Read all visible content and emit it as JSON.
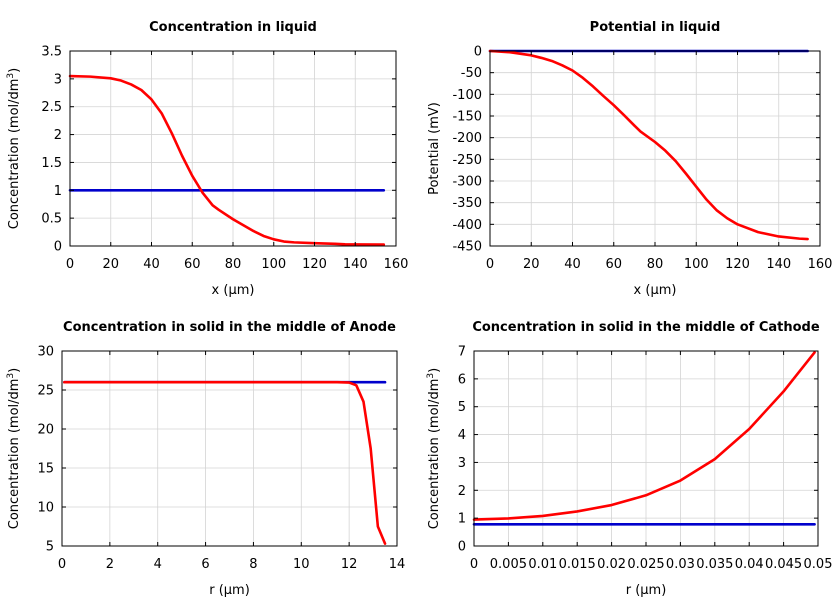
{
  "chart_data": [
    {
      "type": "line",
      "title": "Concentration in liquid",
      "xlabel": "x (µm)",
      "ylabel": "Concentration (mol/dm",
      "ylabel_sup": "3",
      "ylabel_end": ")",
      "xlim": [
        0,
        160
      ],
      "ylim": [
        0,
        3.5
      ],
      "xticks": [
        0,
        20,
        40,
        60,
        80,
        100,
        120,
        140,
        160
      ],
      "xtick_labels": [
        "0",
        "20",
        "40",
        "60",
        "80",
        "100",
        "120",
        "140",
        "160"
      ],
      "yticks": [
        0,
        0.5,
        1,
        1.5,
        2,
        2.5,
        3,
        3.5
      ],
      "ytick_labels": [
        "0",
        "0.5",
        "1",
        "1.5",
        "2",
        "2.5",
        "3",
        "3.5"
      ],
      "grid": true,
      "series": [
        {
          "color": "#0000cc",
          "x": [
            0,
            154
          ],
          "y": [
            1.0,
            1.0
          ]
        },
        {
          "color": "#ff0000",
          "x": [
            0,
            10,
            20,
            25,
            30,
            35,
            40,
            45,
            50,
            55,
            60,
            65,
            70,
            73,
            80,
            90,
            95,
            100,
            105,
            110,
            120,
            130,
            135,
            140,
            154
          ],
          "y": [
            3.05,
            3.04,
            3.01,
            2.97,
            2.9,
            2.8,
            2.63,
            2.38,
            2.02,
            1.62,
            1.26,
            0.96,
            0.73,
            0.65,
            0.48,
            0.27,
            0.18,
            0.12,
            0.08,
            0.065,
            0.05,
            0.04,
            0.03,
            0.028,
            0.025
          ]
        }
      ]
    },
    {
      "type": "line",
      "title": "Potential in liquid",
      "xlabel": "x (µm)",
      "ylabel": "Potential (mV)",
      "xlim": [
        0,
        160
      ],
      "ylim": [
        -450,
        0
      ],
      "xticks": [
        0,
        20,
        40,
        60,
        80,
        100,
        120,
        140,
        160
      ],
      "xtick_labels": [
        "0",
        "20",
        "40",
        "60",
        "80",
        "100",
        "120",
        "140",
        "160"
      ],
      "yticks": [
        0,
        -50,
        -100,
        -150,
        -200,
        -250,
        -300,
        -350,
        -400,
        -450
      ],
      "ytick_labels": [
        "0",
        "-50",
        "-100",
        "-150",
        "-200",
        "-250",
        "-300",
        "-350",
        "-400",
        "-450"
      ],
      "grid": true,
      "series": [
        {
          "color": "#0000cc",
          "x": [
            0,
            154
          ],
          "y": [
            0,
            0
          ]
        },
        {
          "color": "#ff0000",
          "x": [
            0,
            10,
            20,
            25,
            30,
            35,
            40,
            45,
            50,
            55,
            60,
            65,
            70,
            73,
            80,
            85,
            90,
            95,
            100,
            105,
            110,
            115,
            120,
            130,
            140,
            150,
            154
          ],
          "y": [
            0,
            -3,
            -10,
            -16,
            -23,
            -33,
            -45,
            -62,
            -82,
            -104,
            -125,
            -148,
            -172,
            -186,
            -210,
            -230,
            -254,
            -283,
            -313,
            -343,
            -368,
            -386,
            -400,
            -418,
            -428,
            -433,
            -434
          ]
        }
      ]
    },
    {
      "type": "line",
      "title": "Concentration in solid in the middle of Anode",
      "xlabel": "r (µm)",
      "ylabel": "Concentration (mol/dm",
      "ylabel_sup": "3",
      "ylabel_end": ")",
      "xlim": [
        0,
        14
      ],
      "ylim": [
        5,
        30
      ],
      "xticks": [
        0,
        2,
        4,
        6,
        8,
        10,
        12,
        14
      ],
      "xtick_labels": [
        "0",
        "2",
        "4",
        "6",
        "8",
        "10",
        "12",
        "14"
      ],
      "yticks": [
        5,
        10,
        15,
        20,
        25,
        30
      ],
      "ytick_labels": [
        "5",
        "10",
        "15",
        "20",
        "25",
        "30"
      ],
      "grid": true,
      "series": [
        {
          "color": "#0000cc",
          "x": [
            0.1,
            13.5
          ],
          "y": [
            26.0,
            26.0
          ]
        },
        {
          "color": "#ff0000",
          "x": [
            0.1,
            11.5,
            12.0,
            12.3,
            12.6,
            12.9,
            13.2,
            13.5
          ],
          "y": [
            26.0,
            26.0,
            25.95,
            25.6,
            23.5,
            17.5,
            7.5,
            5.3
          ]
        }
      ]
    },
    {
      "type": "line",
      "title": "Concentration in solid in the middle of Cathode",
      "xlabel": "r (µm)",
      "ylabel": "Concentration (mol/dm",
      "ylabel_sup": "3",
      "ylabel_end": ")",
      "xlim": [
        0,
        0.05
      ],
      "ylim": [
        0,
        7
      ],
      "xticks": [
        0,
        0.005,
        0.01,
        0.015,
        0.02,
        0.025,
        0.03,
        0.035,
        0.04,
        0.045,
        0.05
      ],
      "xtick_labels": [
        "0",
        "0.005",
        "0.01",
        "0.015",
        "0.02",
        "0.025",
        "0.03",
        "0.035",
        "0.04",
        "0.045",
        "0.05"
      ],
      "yticks": [
        0,
        1,
        2,
        3,
        4,
        5,
        6,
        7
      ],
      "ytick_labels": [
        "0",
        "1",
        "2",
        "3",
        "4",
        "5",
        "6",
        "7"
      ],
      "grid": true,
      "series": [
        {
          "color": "#0000cc",
          "x": [
            0,
            0.0495
          ],
          "y": [
            0.78,
            0.78
          ]
        },
        {
          "color": "#ff0000",
          "x": [
            0,
            0.005,
            0.01,
            0.015,
            0.02,
            0.025,
            0.03,
            0.035,
            0.04,
            0.045,
            0.0495
          ],
          "y": [
            0.95,
            0.99,
            1.08,
            1.24,
            1.47,
            1.82,
            2.35,
            3.12,
            4.2,
            5.55,
            6.95
          ]
        }
      ]
    }
  ]
}
